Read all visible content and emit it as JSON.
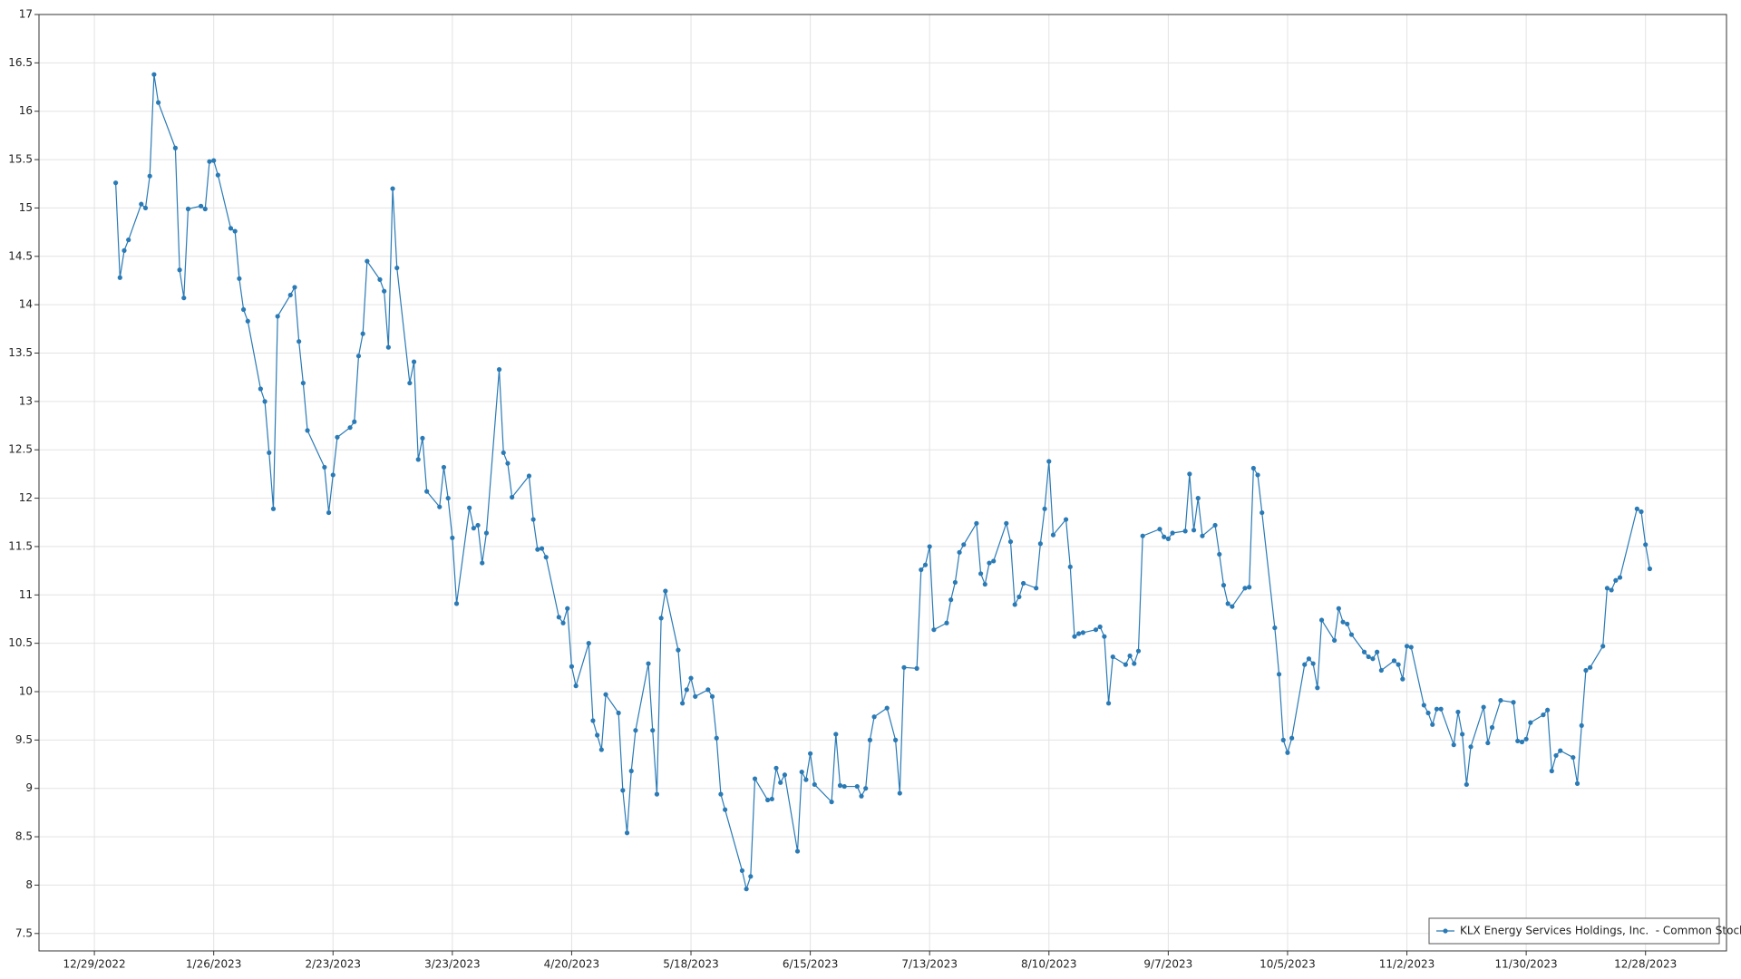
{
  "chart_data": {
    "type": "line",
    "x": [
      "1/3/2023",
      "1/4/2023",
      "1/5/2023",
      "1/6/2023",
      "1/9/2023",
      "1/10/2023",
      "1/11/2023",
      "1/12/2023",
      "1/13/2023",
      "1/17/2023",
      "1/18/2023",
      "1/19/2023",
      "1/20/2023",
      "1/23/2023",
      "1/24/2023",
      "1/25/2023",
      "1/26/2023",
      "1/27/2023",
      "1/30/2023",
      "1/31/2023",
      "2/1/2023",
      "2/2/2023",
      "2/3/2023",
      "2/6/2023",
      "2/7/2023",
      "2/8/2023",
      "2/9/2023",
      "2/10/2023",
      "2/13/2023",
      "2/14/2023",
      "2/15/2023",
      "2/16/2023",
      "2/17/2023",
      "2/21/2023",
      "2/22/2023",
      "2/23/2023",
      "2/24/2023",
      "2/27/2023",
      "2/28/2023",
      "3/1/2023",
      "3/2/2023",
      "3/3/2023",
      "3/6/2023",
      "3/7/2023",
      "3/8/2023",
      "3/9/2023",
      "3/10/2023",
      "3/13/2023",
      "3/14/2023",
      "3/15/2023",
      "3/16/2023",
      "3/17/2023",
      "3/20/2023",
      "3/21/2023",
      "3/22/2023",
      "3/23/2023",
      "3/24/2023",
      "3/27/2023",
      "3/28/2023",
      "3/29/2023",
      "3/30/2023",
      "3/31/2023",
      "4/3/2023",
      "4/4/2023",
      "4/5/2023",
      "4/6/2023",
      "4/10/2023",
      "4/11/2023",
      "4/12/2023",
      "4/13/2023",
      "4/14/2023",
      "4/17/2023",
      "4/18/2023",
      "4/19/2023",
      "4/20/2023",
      "4/21/2023",
      "4/24/2023",
      "4/25/2023",
      "4/26/2023",
      "4/27/2023",
      "4/28/2023",
      "5/1/2023",
      "5/2/2023",
      "5/3/2023",
      "5/4/2023",
      "5/5/2023",
      "5/8/2023",
      "5/9/2023",
      "5/10/2023",
      "5/11/2023",
      "5/12/2023",
      "5/15/2023",
      "5/16/2023",
      "5/17/2023",
      "5/18/2023",
      "5/19/2023",
      "5/22/2023",
      "5/23/2023",
      "5/24/2023",
      "5/25/2023",
      "5/26/2023",
      "5/30/2023",
      "5/31/2023",
      "6/1/2023",
      "6/2/2023",
      "6/5/2023",
      "6/6/2023",
      "6/7/2023",
      "6/8/2023",
      "6/9/2023",
      "6/12/2023",
      "6/13/2023",
      "6/14/2023",
      "6/15/2023",
      "6/16/2023",
      "6/20/2023",
      "6/21/2023",
      "6/22/2023",
      "6/23/2023",
      "6/26/2023",
      "6/27/2023",
      "6/28/2023",
      "6/29/2023",
      "6/30/2023",
      "7/3/2023",
      "7/5/2023",
      "7/6/2023",
      "7/7/2023",
      "7/10/2023",
      "7/11/2023",
      "7/12/2023",
      "7/13/2023",
      "7/14/2023",
      "7/17/2023",
      "7/18/2023",
      "7/19/2023",
      "7/20/2023",
      "7/21/2023",
      "7/24/2023",
      "7/25/2023",
      "7/26/2023",
      "7/27/2023",
      "7/28/2023",
      "7/31/2023",
      "8/1/2023",
      "8/2/2023",
      "8/3/2023",
      "8/4/2023",
      "8/7/2023",
      "8/8/2023",
      "8/9/2023",
      "8/10/2023",
      "8/11/2023",
      "8/14/2023",
      "8/15/2023",
      "8/16/2023",
      "8/17/2023",
      "8/18/2023",
      "8/21/2023",
      "8/22/2023",
      "8/23/2023",
      "8/24/2023",
      "8/25/2023",
      "8/28/2023",
      "8/29/2023",
      "8/30/2023",
      "8/31/2023",
      "9/1/2023",
      "9/5/2023",
      "9/6/2023",
      "9/7/2023",
      "9/8/2023",
      "9/11/2023",
      "9/12/2023",
      "9/13/2023",
      "9/14/2023",
      "9/15/2023",
      "9/18/2023",
      "9/19/2023",
      "9/20/2023",
      "9/21/2023",
      "9/22/2023",
      "9/25/2023",
      "9/26/2023",
      "9/27/2023",
      "9/28/2023",
      "9/29/2023",
      "10/2/2023",
      "10/3/2023",
      "10/4/2023",
      "10/5/2023",
      "10/6/2023",
      "10/9/2023",
      "10/10/2023",
      "10/11/2023",
      "10/12/2023",
      "10/13/2023",
      "10/16/2023",
      "10/17/2023",
      "10/18/2023",
      "10/19/2023",
      "10/20/2023",
      "10/23/2023",
      "10/24/2023",
      "10/25/2023",
      "10/26/2023",
      "10/27/2023",
      "10/30/2023",
      "10/31/2023",
      "11/1/2023",
      "11/2/2023",
      "11/3/2023",
      "11/6/2023",
      "11/7/2023",
      "11/8/2023",
      "11/9/2023",
      "11/10/2023",
      "11/13/2023",
      "11/14/2023",
      "11/15/2023",
      "11/16/2023",
      "11/17/2023",
      "11/20/2023",
      "11/21/2023",
      "11/22/2023",
      "11/24/2023",
      "11/27/2023",
      "11/28/2023",
      "11/29/2023",
      "11/30/2023",
      "12/1/2023",
      "12/4/2023",
      "12/5/2023",
      "12/6/2023",
      "12/7/2023",
      "12/8/2023",
      "12/11/2023",
      "12/12/2023",
      "12/13/2023",
      "12/14/2023",
      "12/15/2023",
      "12/18/2023",
      "12/19/2023",
      "12/20/2023",
      "12/21/2023",
      "12/22/2023",
      "12/26/2023",
      "12/27/2023",
      "12/28/2023",
      "12/29/2023"
    ],
    "series": [
      {
        "name": "KLX Energy Services Holdings, Inc.  - Common Stock",
        "color": "#2a7ab5",
        "values": [
          15.26,
          14.28,
          14.56,
          14.67,
          15.04,
          15.0,
          15.33,
          16.38,
          16.09,
          15.62,
          14.36,
          14.07,
          14.99,
          15.02,
          14.99,
          15.48,
          15.49,
          15.34,
          14.79,
          14.76,
          14.27,
          13.95,
          13.83,
          13.13,
          13.0,
          12.47,
          11.89,
          13.88,
          14.1,
          14.18,
          13.62,
          13.19,
          12.7,
          12.32,
          11.85,
          12.24,
          12.63,
          12.73,
          12.79,
          13.47,
          13.7,
          14.45,
          14.26,
          14.14,
          13.56,
          15.2,
          14.38,
          13.19,
          13.41,
          12.4,
          12.62,
          12.07,
          11.91,
          12.32,
          12.0,
          11.59,
          10.91,
          11.9,
          11.69,
          11.72,
          11.33,
          11.64,
          13.33,
          12.47,
          12.36,
          12.01,
          12.23,
          11.78,
          11.47,
          11.48,
          11.39,
          10.77,
          10.71,
          10.86,
          10.26,
          10.06,
          10.5,
          9.7,
          9.55,
          9.4,
          9.97,
          9.78,
          8.98,
          8.54,
          9.18,
          9.6,
          10.29,
          9.6,
          8.94,
          10.76,
          11.04,
          10.43,
          9.88,
          10.02,
          10.14,
          9.95,
          10.02,
          9.95,
          9.52,
          8.94,
          8.78,
          8.15,
          7.96,
          8.09,
          9.1,
          8.88,
          8.89,
          9.21,
          9.06,
          9.14,
          8.35,
          9.17,
          9.09,
          9.36,
          9.04,
          8.86,
          9.56,
          9.03,
          9.02,
          9.02,
          8.92,
          9.0,
          9.5,
          9.74,
          9.83,
          9.5,
          8.95,
          10.25,
          10.24,
          11.26,
          11.31,
          11.5,
          10.64,
          10.71,
          10.95,
          11.13,
          11.44,
          11.52,
          11.74,
          11.22,
          11.11,
          11.33,
          11.35,
          11.74,
          11.55,
          10.9,
          10.98,
          11.12,
          11.07,
          11.53,
          11.89,
          12.38,
          11.62,
          11.78,
          11.29,
          10.57,
          10.6,
          10.61,
          10.64,
          10.67,
          10.57,
          9.88,
          10.36,
          10.28,
          10.37,
          10.29,
          10.42,
          11.61,
          11.68,
          11.6,
          11.58,
          11.64,
          11.66,
          12.25,
          11.67,
          12.0,
          11.61,
          11.72,
          11.42,
          11.1,
          10.91,
          10.88,
          11.07,
          11.08,
          12.31,
          12.24,
          11.85,
          10.66,
          10.18,
          9.5,
          9.37,
          9.52,
          10.28,
          10.34,
          10.29,
          10.04,
          10.74,
          10.53,
          10.86,
          10.72,
          10.7,
          10.59,
          10.41,
          10.36,
          10.34,
          10.41,
          10.22,
          10.32,
          10.28,
          10.13,
          10.47,
          10.46,
          9.86,
          9.78,
          9.66,
          9.82,
          9.82,
          9.45,
          9.79,
          9.56,
          9.04,
          9.43,
          9.84,
          9.47,
          9.63,
          9.91,
          9.89,
          9.49,
          9.48,
          9.51,
          9.68,
          9.76,
          9.81,
          9.18,
          9.34,
          9.39,
          9.32,
          9.05,
          9.65,
          10.22,
          10.25,
          10.47,
          11.07,
          11.05,
          11.15,
          11.18,
          11.89,
          11.86,
          11.52,
          11.27
        ]
      }
    ],
    "xlim": [
      "12/16/2022",
      "1/16/2024"
    ],
    "xticks": [
      "12/29/2022",
      "1/26/2023",
      "2/23/2023",
      "3/23/2023",
      "4/20/2023",
      "5/18/2023",
      "6/15/2023",
      "7/13/2023",
      "8/10/2023",
      "9/7/2023",
      "10/5/2023",
      "11/2/2023",
      "11/30/2023",
      "12/28/2023"
    ],
    "ylim": [
      7.32,
      17
    ],
    "yticks": [
      7.5,
      8,
      8.5,
      9,
      9.5,
      10,
      10.5,
      11,
      11.5,
      12,
      12.5,
      13,
      13.5,
      14,
      14.5,
      15,
      15.5,
      16,
      16.5,
      17
    ],
    "grid": true,
    "legend": "lower right"
  }
}
